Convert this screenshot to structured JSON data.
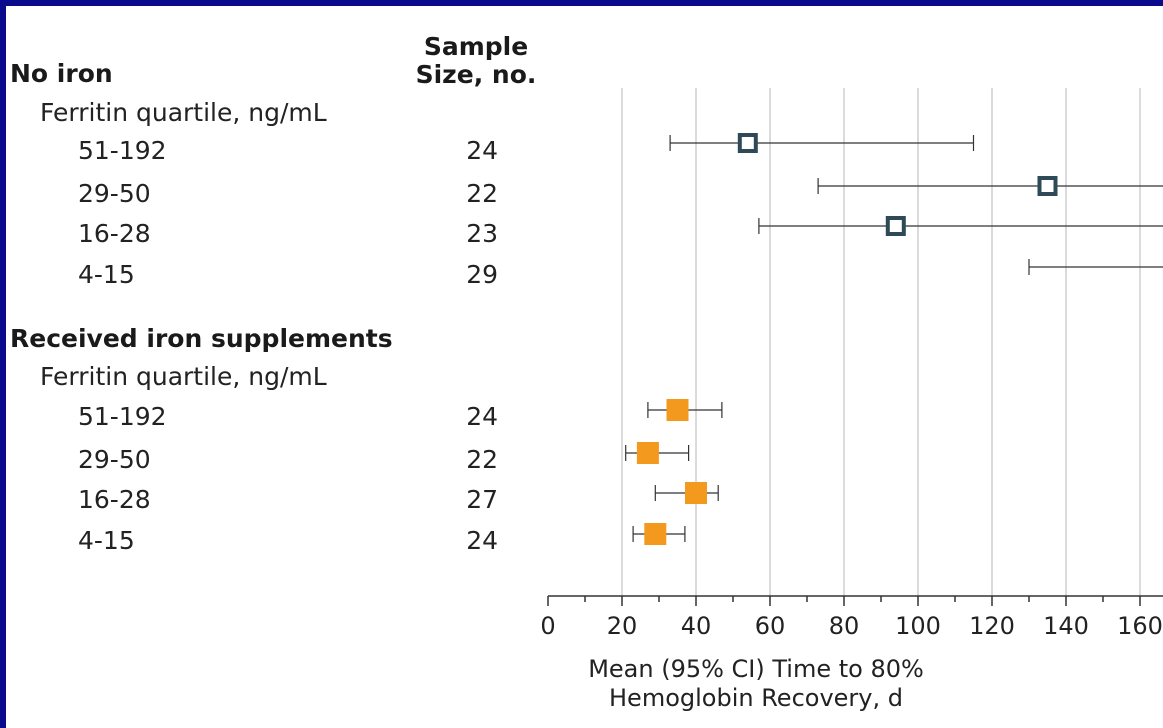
{
  "header": {
    "sample_size_line1": "Sample",
    "sample_size_line2": "Size, no."
  },
  "groups": [
    {
      "title": "No iron",
      "subtitle": "Ferritin quartile, ng/mL",
      "rows": [
        {
          "label": "51-192",
          "n": "24"
        },
        {
          "label": "29-50",
          "n": "22"
        },
        {
          "label": "16-28",
          "n": "23"
        },
        {
          "label": "4-15",
          "n": "29"
        }
      ]
    },
    {
      "title": "Received iron supplements",
      "subtitle": "Ferritin quartile, ng/mL",
      "rows": [
        {
          "label": "51-192",
          "n": "24"
        },
        {
          "label": "29-50",
          "n": "22"
        },
        {
          "label": "16-28",
          "n": "27"
        },
        {
          "label": "4-15",
          "n": "24"
        }
      ]
    }
  ],
  "chart_data": {
    "type": "forest",
    "xlabel_line1": "Mean (95% CI) Time to 80%",
    "xlabel_line2": "Hemoglobin Recovery, d",
    "xlim": [
      0,
      168
    ],
    "xticks": [
      0,
      20,
      40,
      60,
      80,
      100,
      120,
      140,
      160
    ],
    "grid": true,
    "series": [
      {
        "name": "No iron",
        "marker": "open-square",
        "color": "#2e4a57",
        "points": [
          {
            "label": "51-192",
            "mean": 54,
            "lower": 33,
            "upper": 115,
            "upper_truncated": false
          },
          {
            "label": "29-50",
            "mean": 135,
            "lower": 73,
            "upper": 168,
            "upper_truncated": true
          },
          {
            "label": "16-28",
            "mean": 94,
            "lower": 57,
            "upper": 168,
            "upper_truncated": true
          },
          {
            "label": "4-15",
            "mean": null,
            "lower": 130,
            "upper": 168,
            "upper_truncated": true
          }
        ]
      },
      {
        "name": "Received iron supplements",
        "marker": "filled-square",
        "color": "#f39a1e",
        "points": [
          {
            "label": "51-192",
            "mean": 35,
            "lower": 27,
            "upper": 47,
            "upper_truncated": false
          },
          {
            "label": "29-50",
            "mean": 27,
            "lower": 21,
            "upper": 38,
            "upper_truncated": false
          },
          {
            "label": "16-28",
            "mean": 40,
            "lower": 29,
            "upper": 46,
            "upper_truncated": false
          },
          {
            "label": "4-15",
            "mean": 29,
            "lower": 23,
            "upper": 37,
            "upper_truncated": false
          }
        ]
      }
    ]
  }
}
